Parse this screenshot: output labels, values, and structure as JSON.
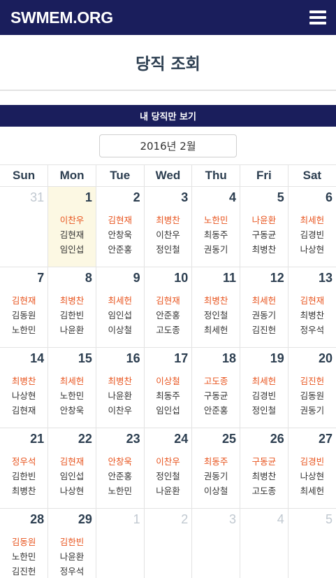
{
  "brand": "SWMEM.ORG",
  "page_title": "당직 조회",
  "my_duty_label": "내 당직만 보기",
  "month_label": "2016년 2월",
  "weekdays": [
    "Sun",
    "Mon",
    "Tue",
    "Wed",
    "Thu",
    "Fri",
    "Sat"
  ],
  "colors": {
    "navbar": "#1a1e5c",
    "lead": "#e8541e",
    "today_bg": "#fcf8e3"
  },
  "weeks": [
    [
      {
        "day": "31",
        "muted": true,
        "names": []
      },
      {
        "day": "1",
        "today": true,
        "names": [
          "이찬우",
          "김현재",
          "임인섭"
        ]
      },
      {
        "day": "2",
        "names": [
          "김현재",
          "안창욱",
          "안준홍"
        ]
      },
      {
        "day": "3",
        "names": [
          "최병찬",
          "이찬우",
          "정인철"
        ]
      },
      {
        "day": "4",
        "names": [
          "노한민",
          "최동주",
          "권동기"
        ]
      },
      {
        "day": "5",
        "names": [
          "나윤환",
          "구동균",
          "최병찬"
        ]
      },
      {
        "day": "6",
        "names": [
          "최세헌",
          "김경빈",
          "나상현"
        ]
      }
    ],
    [
      {
        "day": "7",
        "names": [
          "김현재",
          "김동원",
          "노한민"
        ]
      },
      {
        "day": "8",
        "names": [
          "최병찬",
          "김한빈",
          "나윤환"
        ]
      },
      {
        "day": "9",
        "names": [
          "최세헌",
          "임인섭",
          "이상철"
        ]
      },
      {
        "day": "10",
        "names": [
          "김현재",
          "안준홍",
          "고도종"
        ]
      },
      {
        "day": "11",
        "names": [
          "최병찬",
          "정인철",
          "최세헌"
        ]
      },
      {
        "day": "12",
        "names": [
          "최세헌",
          "권동기",
          "김진헌"
        ]
      },
      {
        "day": "13",
        "names": [
          "김현재",
          "최병찬",
          "정우석"
        ]
      }
    ],
    [
      {
        "day": "14",
        "names": [
          "최병찬",
          "나상현",
          "김현재"
        ]
      },
      {
        "day": "15",
        "names": [
          "최세헌",
          "노한민",
          "안창욱"
        ]
      },
      {
        "day": "16",
        "names": [
          "최병찬",
          "나윤환",
          "이찬우"
        ]
      },
      {
        "day": "17",
        "names": [
          "이상철",
          "최동주",
          "임인섭"
        ]
      },
      {
        "day": "18",
        "names": [
          "고도종",
          "구동균",
          "안준홍"
        ]
      },
      {
        "day": "19",
        "names": [
          "최세헌",
          "김경빈",
          "정인철"
        ]
      },
      {
        "day": "20",
        "names": [
          "김진헌",
          "김동원",
          "권동기"
        ]
      }
    ],
    [
      {
        "day": "21",
        "names": [
          "정우석",
          "김한빈",
          "최병찬"
        ]
      },
      {
        "day": "22",
        "names": [
          "김현재",
          "임인섭",
          "나상현"
        ]
      },
      {
        "day": "23",
        "names": [
          "안창욱",
          "안준홍",
          "노한민"
        ]
      },
      {
        "day": "24",
        "names": [
          "이찬우",
          "정인철",
          "나윤환"
        ]
      },
      {
        "day": "25",
        "names": [
          "최동주",
          "권동기",
          "이상철"
        ]
      },
      {
        "day": "26",
        "names": [
          "구동균",
          "최병찬",
          "고도종"
        ]
      },
      {
        "day": "27",
        "names": [
          "김경빈",
          "나상현",
          "최세헌"
        ]
      }
    ],
    [
      {
        "day": "28",
        "names": [
          "김동원",
          "노한민",
          "김진헌"
        ]
      },
      {
        "day": "29",
        "names": [
          "김한빈",
          "나윤환",
          "정우석"
        ]
      },
      {
        "day": "1",
        "muted": true,
        "names": []
      },
      {
        "day": "2",
        "muted": true,
        "names": []
      },
      {
        "day": "3",
        "muted": true,
        "names": []
      },
      {
        "day": "4",
        "muted": true,
        "names": []
      },
      {
        "day": "5",
        "muted": true,
        "names": []
      }
    ]
  ]
}
